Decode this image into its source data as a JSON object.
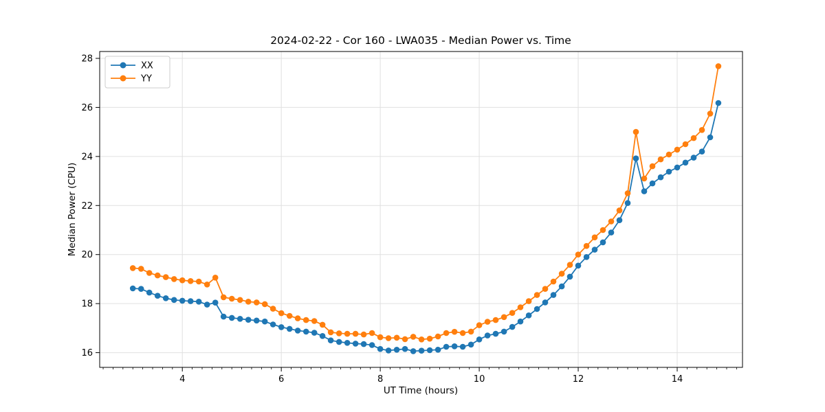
{
  "chart_data": {
    "type": "line",
    "title": "2024-02-22 - Cor 160 - LWA035 - Median Power vs. Time",
    "xlabel": "UT Time (hours)",
    "ylabel": "Median Power (CPU)",
    "grid": true,
    "legend_position": "upper left",
    "xlim": [
      2.33,
      15.32
    ],
    "ylim": [
      15.4,
      28.28
    ],
    "x_ticks": [
      4,
      6,
      8,
      10,
      12,
      14
    ],
    "y_ticks": [
      16,
      18,
      20,
      22,
      24,
      26,
      28
    ],
    "x_minor_step": 0.2,
    "grid_color": "#e0e0e0",
    "spine_color": "#000000",
    "x": [
      3.0,
      3.167,
      3.333,
      3.5,
      3.667,
      3.833,
      4.0,
      4.167,
      4.333,
      4.5,
      4.667,
      4.833,
      5.0,
      5.167,
      5.333,
      5.5,
      5.667,
      5.833,
      6.0,
      6.167,
      6.333,
      6.5,
      6.667,
      6.833,
      7.0,
      7.167,
      7.333,
      7.5,
      7.667,
      7.833,
      8.0,
      8.167,
      8.333,
      8.5,
      8.667,
      8.833,
      9.0,
      9.167,
      9.333,
      9.5,
      9.667,
      9.833,
      10.0,
      10.167,
      10.333,
      10.5,
      10.667,
      10.833,
      11.0,
      11.167,
      11.333,
      11.5,
      11.667,
      11.833,
      12.0,
      12.167,
      12.333,
      12.5,
      12.667,
      12.833,
      13.0,
      13.167,
      13.333,
      13.5,
      13.667,
      13.833,
      14.0,
      14.167,
      14.333,
      14.5,
      14.667,
      14.833
    ],
    "series": [
      {
        "name": "XX",
        "color": "#1f77b4",
        "values": [
          18.62,
          18.6,
          18.45,
          18.32,
          18.22,
          18.15,
          18.12,
          18.1,
          18.08,
          17.96,
          18.04,
          17.47,
          17.42,
          17.38,
          17.34,
          17.31,
          17.27,
          17.15,
          17.04,
          16.97,
          16.9,
          16.86,
          16.81,
          16.68,
          16.5,
          16.44,
          16.4,
          16.37,
          16.35,
          16.31,
          16.15,
          16.09,
          16.12,
          16.15,
          16.06,
          16.08,
          16.1,
          16.12,
          16.24,
          16.26,
          16.24,
          16.33,
          16.54,
          16.7,
          16.77,
          16.86,
          17.05,
          17.27,
          17.52,
          17.78,
          18.05,
          18.35,
          18.7,
          19.1,
          19.55,
          19.9,
          20.2,
          20.5,
          20.9,
          21.4,
          22.1,
          23.92,
          22.58,
          22.9,
          23.15,
          23.38,
          23.55,
          23.75,
          23.95,
          24.2,
          24.78,
          26.18
        ]
      },
      {
        "name": "YY",
        "color": "#ff7f0e",
        "values": [
          19.45,
          19.42,
          19.25,
          19.15,
          19.08,
          19.0,
          18.95,
          18.92,
          18.9,
          18.78,
          19.06,
          18.26,
          18.2,
          18.15,
          18.08,
          18.05,
          17.98,
          17.79,
          17.61,
          17.5,
          17.4,
          17.33,
          17.29,
          17.14,
          16.83,
          16.79,
          16.77,
          16.77,
          16.74,
          16.8,
          16.63,
          16.59,
          16.61,
          16.55,
          16.65,
          16.54,
          16.57,
          16.66,
          16.8,
          16.85,
          16.8,
          16.86,
          17.12,
          17.26,
          17.33,
          17.45,
          17.62,
          17.85,
          18.1,
          18.35,
          18.6,
          18.9,
          19.22,
          19.58,
          20.0,
          20.35,
          20.7,
          21.0,
          21.35,
          21.8,
          22.5,
          25.0,
          23.1,
          23.6,
          23.88,
          24.08,
          24.28,
          24.5,
          24.75,
          25.08,
          25.75,
          27.68
        ]
      }
    ]
  }
}
